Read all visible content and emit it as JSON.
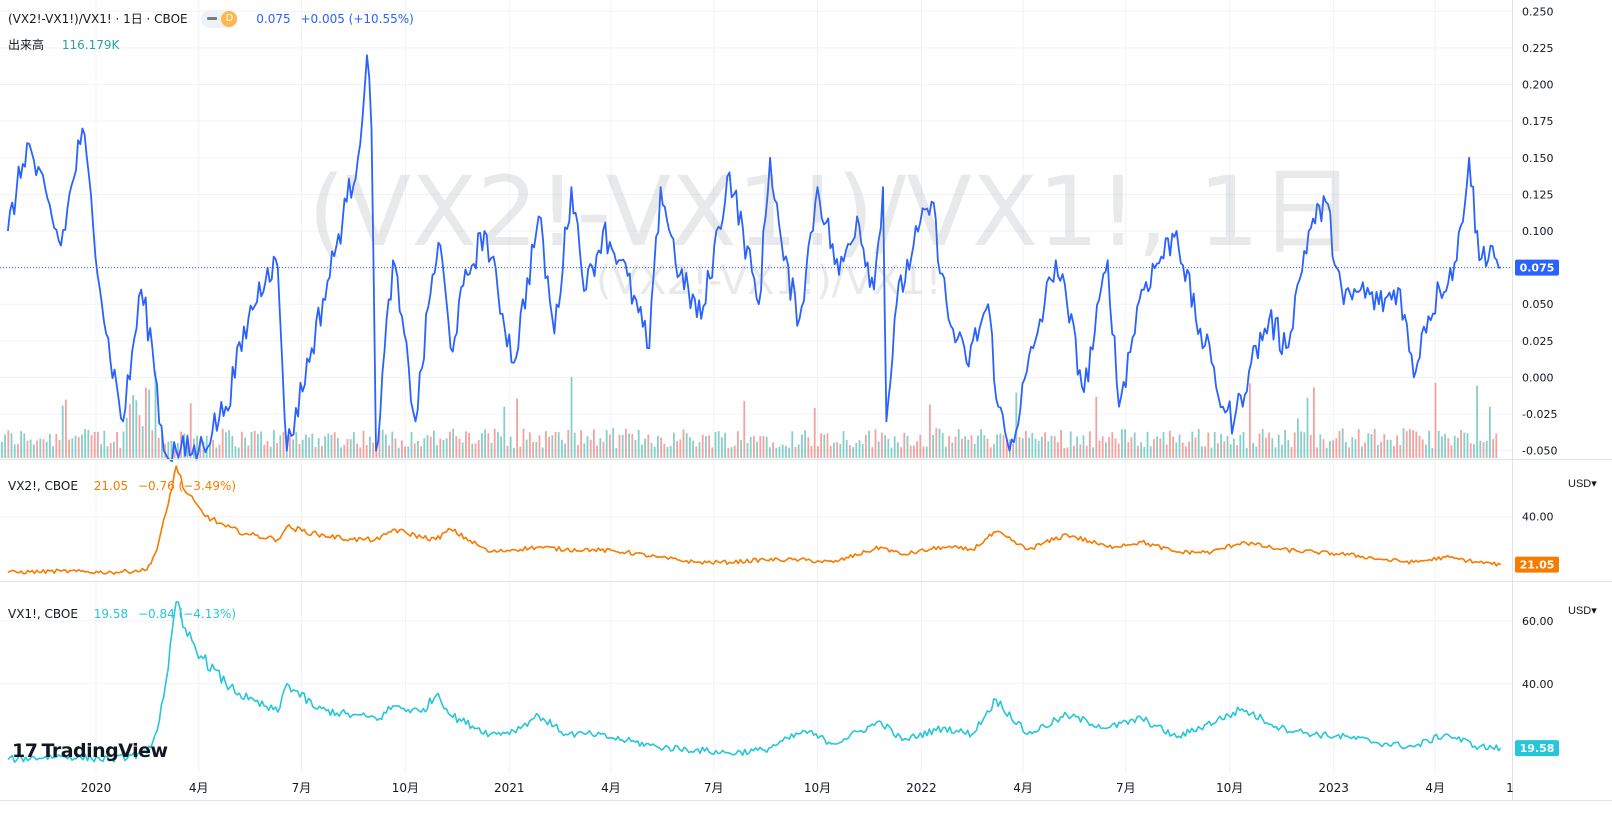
{
  "header": {
    "symbol_title": "(VX2!-VX1!)/VX1! · 1日 · CBOE",
    "interval_badge": "D",
    "value": "0.075",
    "change": "+0.005 (+10.55%)",
    "volume_label": "出来高",
    "volume_value": "116.179K"
  },
  "watermark": {
    "main": "(VX2!-VX1!)/VX1!, 1日",
    "sub": "(VX2!-VX1!)/VX1!"
  },
  "vx2_legend": {
    "title": "VX2!, CBOE",
    "value": "21.05",
    "change": "−0.76 (−3.49%)"
  },
  "vx1_legend": {
    "title": "VX1!, CBOE",
    "value": "19.58",
    "change": "−0.84 (−4.13%)"
  },
  "axis": {
    "currency": "USD",
    "currency_arrow": "▾"
  },
  "brand": {
    "logo_mark": "17",
    "logo_text": "TradingView"
  },
  "colors": {
    "spread": "#2962ff",
    "vx2": "#f57c00",
    "vx1": "#26c6da",
    "vol_up": "#26a69a",
    "vol_down": "#ef5350",
    "grid": "#f0f3fa"
  },
  "chart_data": [
    {
      "type": "line",
      "name": "(VX2!-VX1!)/VX1!",
      "ylim": [
        -0.055,
        0.255
      ],
      "yticks": [
        "0.250",
        "0.225",
        "0.200",
        "0.175",
        "0.150",
        "0.125",
        "0.100",
        "0.075",
        "0.050",
        "0.025",
        "0.000",
        "-0.025",
        "-0.050"
      ],
      "last_value": "0.075",
      "x": [
        "2019-10-15",
        "2019-11-01",
        "2019-12-01",
        "2019-12-20",
        "2020-01-10",
        "2020-01-25",
        "2020-02-10",
        "2020-02-20",
        "2020-03-01",
        "2020-03-12",
        "2020-04-01",
        "2020-04-25",
        "2020-05-15",
        "2020-06-01",
        "2020-06-10",
        "2020-06-18",
        "2020-07-10",
        "2020-08-01",
        "2020-08-10",
        "2020-08-20",
        "2020-08-28",
        "2020-09-01",
        "2020-09-05",
        "2020-09-20",
        "2020-10-10",
        "2020-10-25",
        "2020-11-01",
        "2020-11-10",
        "2020-11-25",
        "2020-12-10",
        "2021-01-05",
        "2021-01-27",
        "2021-02-10",
        "2021-02-25",
        "2021-03-10",
        "2021-03-25",
        "2021-04-10",
        "2021-05-05",
        "2021-05-15",
        "2021-06-01",
        "2021-06-20",
        "2021-07-15",
        "2021-08-10",
        "2021-08-20",
        "2021-09-01",
        "2021-09-15",
        "2021-10-01",
        "2021-10-20",
        "2021-11-05",
        "2021-11-20",
        "2021-11-28",
        "2021-12-01",
        "2021-12-10",
        "2021-12-25",
        "2022-01-10",
        "2022-01-25",
        "2022-02-10",
        "2022-03-01",
        "2022-03-10",
        "2022-03-20",
        "2022-04-10",
        "2022-04-30",
        "2022-05-10",
        "2022-05-25",
        "2022-06-15",
        "2022-06-25",
        "2022-07-15",
        "2022-08-15",
        "2022-09-01",
        "2022-09-15",
        "2022-09-25",
        "2022-10-05",
        "2022-10-20",
        "2022-11-05",
        "2022-11-20",
        "2022-12-10",
        "2022-12-25",
        "2023-01-10",
        "2023-01-25",
        "2023-02-10",
        "2023-03-01",
        "2023-03-13",
        "2023-03-20",
        "2023-04-05",
        "2023-04-20",
        "2023-05-01",
        "2023-05-10",
        "2023-05-20",
        "2023-05-29"
      ],
      "values": [
        0.1,
        0.16,
        0.09,
        0.17,
        0.03,
        -0.03,
        0.06,
        0.02,
        -0.05,
        -0.05,
        -0.05,
        -0.02,
        0.04,
        0.075,
        0.075,
        -0.05,
        0.02,
        0.09,
        0.12,
        0.15,
        0.22,
        0.17,
        -0.05,
        0.08,
        -0.03,
        0.07,
        0.09,
        0.02,
        0.07,
        0.1,
        0.01,
        0.11,
        0.03,
        0.13,
        0.06,
        0.1,
        0.08,
        0.02,
        0.13,
        0.07,
        0.04,
        0.14,
        0.05,
        0.15,
        0.08,
        0.04,
        0.13,
        0.07,
        0.11,
        0.06,
        0.13,
        -0.03,
        0.05,
        0.09,
        0.12,
        0.04,
        0.01,
        0.05,
        -0.02,
        -0.05,
        0.02,
        0.08,
        0.05,
        -0.01,
        0.08,
        -0.02,
        0.06,
        0.1,
        0.04,
        0.01,
        -0.02,
        -0.03,
        0.01,
        0.04,
        0.02,
        0.1,
        0.12,
        0.05,
        0.06,
        0.05,
        0.06,
        0.0,
        0.03,
        0.06,
        0.08,
        0.15,
        0.08,
        0.09,
        0.075
      ]
    },
    {
      "type": "bar",
      "name": "出来高",
      "last_value": "116.179K"
    },
    {
      "type": "line",
      "name": "VX2!, CBOE",
      "ylim": [
        15,
        62
      ],
      "yticks": [
        "40.00"
      ],
      "last_value": "21.05",
      "x": [
        "2019-10-15",
        "2019-12-01",
        "2020-01-15",
        "2020-02-15",
        "2020-02-24",
        "2020-03-05",
        "2020-03-12",
        "2020-03-20",
        "2020-04-05",
        "2020-04-25",
        "2020-05-15",
        "2020-06-10",
        "2020-06-18",
        "2020-07-15",
        "2020-08-15",
        "2020-09-08",
        "2020-09-20",
        "2020-10-15",
        "2020-10-28",
        "2020-11-10",
        "2020-12-15",
        "2021-01-05",
        "2021-01-27",
        "2021-02-20",
        "2021-03-15",
        "2021-04-15",
        "2021-05-12",
        "2021-06-15",
        "2021-07-15",
        "2021-08-15",
        "2021-09-15",
        "2021-10-15",
        "2021-11-26",
        "2021-12-15",
        "2022-01-20",
        "2022-02-15",
        "2022-03-08",
        "2022-04-05",
        "2022-05-10",
        "2022-06-15",
        "2022-07-15",
        "2022-08-15",
        "2022-09-15",
        "2022-10-12",
        "2022-11-15",
        "2022-12-15",
        "2023-01-15",
        "2023-02-15",
        "2023-03-13",
        "2023-04-10",
        "2023-05-10",
        "2023-05-29"
      ],
      "values": [
        18,
        18.5,
        18,
        19,
        27,
        45,
        60,
        50,
        41,
        36,
        33,
        31,
        36,
        33,
        31,
        31,
        35,
        32,
        31,
        35,
        26,
        27,
        28,
        27,
        27,
        26,
        24,
        22,
        22,
        23,
        23,
        22,
        28,
        25,
        28,
        27,
        34,
        27,
        33,
        28,
        30,
        26,
        26,
        30,
        27,
        26,
        25,
        23,
        22,
        24,
        22,
        21.05
      ]
    },
    {
      "type": "line",
      "name": "VX1!, CBOE",
      "ylim": [
        12,
        72
      ],
      "yticks": [
        "60.00",
        "40.00"
      ],
      "last_value": "19.58",
      "x": [
        "2019-10-15",
        "2019-12-01",
        "2020-01-15",
        "2020-02-15",
        "2020-02-24",
        "2020-03-05",
        "2020-03-12",
        "2020-03-18",
        "2020-04-05",
        "2020-04-25",
        "2020-05-15",
        "2020-06-10",
        "2020-06-18",
        "2020-07-15",
        "2020-08-15",
        "2020-09-08",
        "2020-09-20",
        "2020-10-15",
        "2020-10-30",
        "2020-11-10",
        "2020-12-15",
        "2021-01-05",
        "2021-01-27",
        "2021-02-20",
        "2021-03-15",
        "2021-04-15",
        "2021-05-12",
        "2021-06-15",
        "2021-07-15",
        "2021-08-15",
        "2021-09-20",
        "2021-10-15",
        "2021-11-26",
        "2021-12-15",
        "2022-01-20",
        "2022-02-15",
        "2022-03-08",
        "2022-04-05",
        "2022-05-10",
        "2022-06-15",
        "2022-07-15",
        "2022-08-15",
        "2022-09-30",
        "2022-10-12",
        "2022-11-15",
        "2022-12-15",
        "2023-01-15",
        "2023-02-15",
        "2023-03-13",
        "2023-04-10",
        "2023-05-10",
        "2023-05-29"
      ],
      "values": [
        16,
        17,
        16,
        18,
        25,
        45,
        66,
        58,
        48,
        40,
        35,
        31,
        40,
        32,
        30,
        29,
        33,
        31,
        37,
        30,
        24,
        25,
        30,
        24,
        24,
        22,
        20,
        19,
        18,
        19,
        25,
        21,
        28,
        22,
        26,
        24,
        35,
        24,
        30,
        26,
        29,
        23,
        30,
        32,
        26,
        24,
        23,
        21,
        20,
        24,
        20,
        19.58
      ]
    }
  ],
  "x_axis": {
    "range": [
      "2019-10-08",
      "2023-06-08"
    ],
    "ticks": [
      {
        "date": "2020-01-01",
        "label": "2020"
      },
      {
        "date": "2020-04-01",
        "label": "4月"
      },
      {
        "date": "2020-07-01",
        "label": "7月"
      },
      {
        "date": "2020-10-01",
        "label": "10月"
      },
      {
        "date": "2021-01-01",
        "label": "2021"
      },
      {
        "date": "2021-04-01",
        "label": "4月"
      },
      {
        "date": "2021-07-01",
        "label": "7月"
      },
      {
        "date": "2021-10-01",
        "label": "10月"
      },
      {
        "date": "2022-01-01",
        "label": "2022"
      },
      {
        "date": "2022-04-01",
        "label": "4月"
      },
      {
        "date": "2022-07-01",
        "label": "7月"
      },
      {
        "date": "2022-10-01",
        "label": "10月"
      },
      {
        "date": "2023-01-01",
        "label": "2023"
      },
      {
        "date": "2023-04-01",
        "label": "4月"
      }
    ],
    "end_label": "1"
  }
}
